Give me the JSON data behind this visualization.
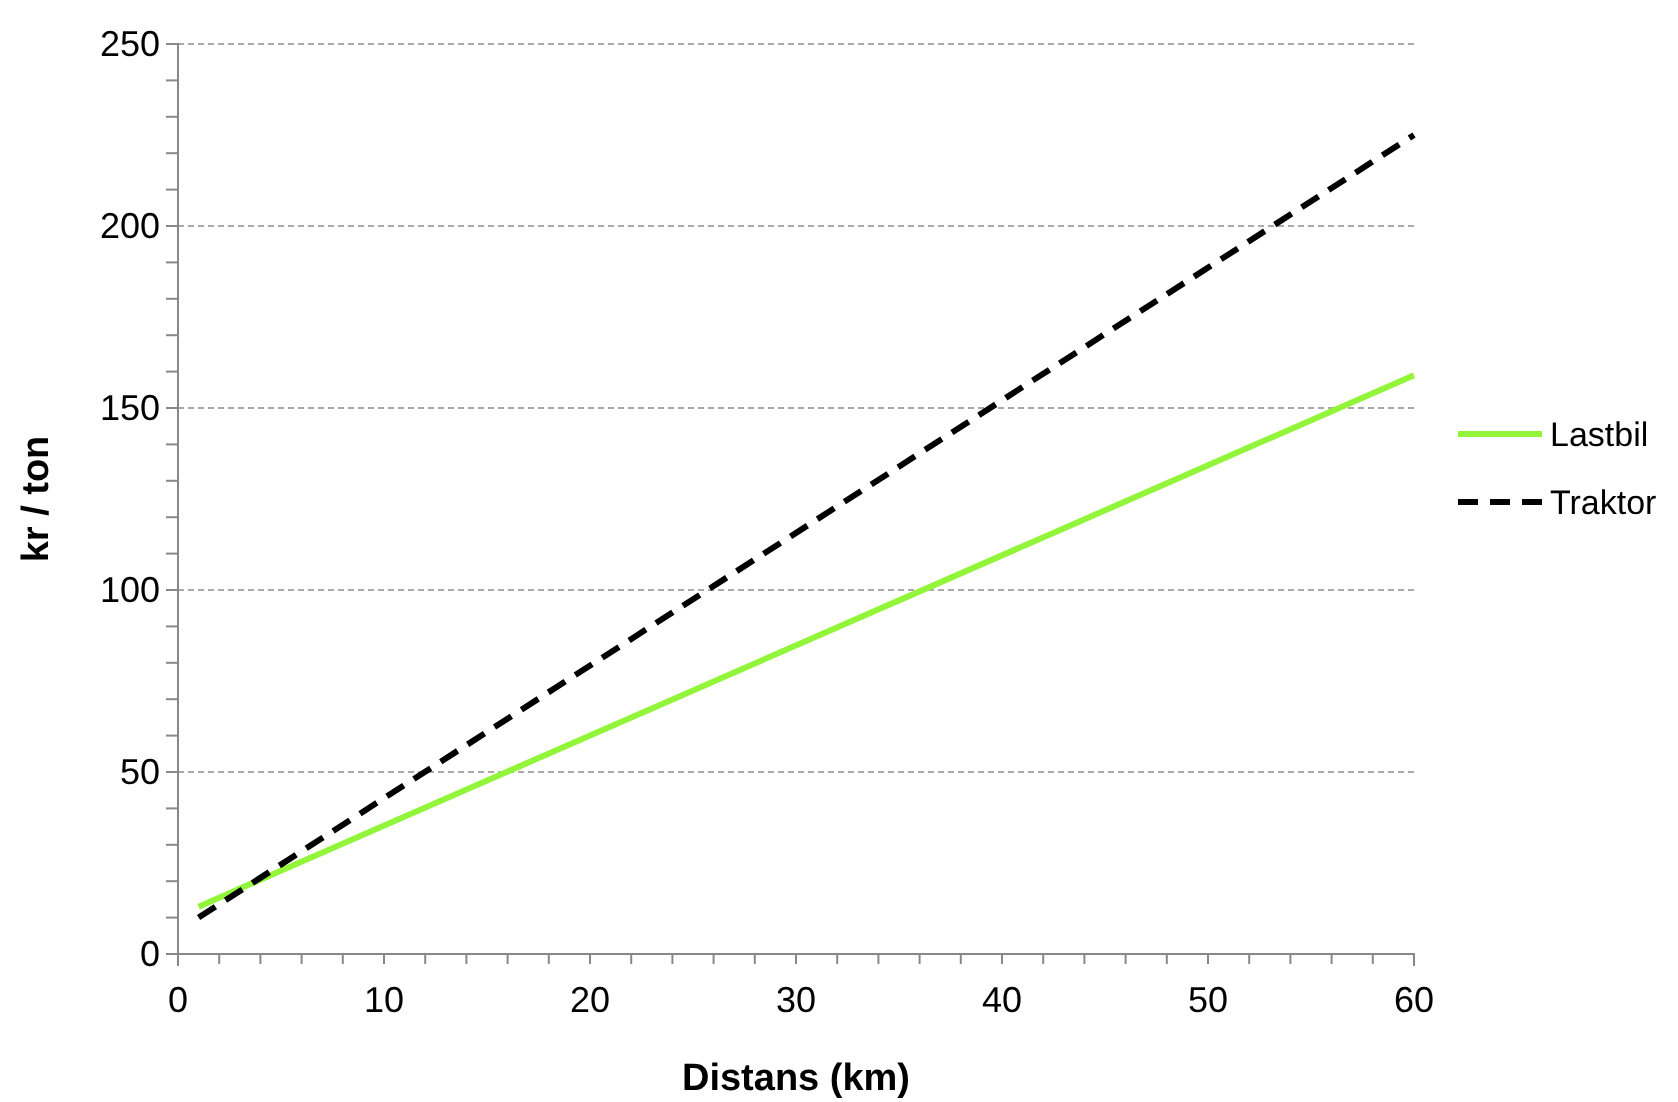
{
  "chart_data": {
    "type": "line",
    "xlabel": "Distans (km)",
    "ylabel": "kr / ton",
    "xlim": [
      0,
      60
    ],
    "ylim": [
      0,
      250
    ],
    "xticks": [
      0,
      {
        "value": 2,
        "label": null
      },
      {
        "value": 4,
        "label": null
      },
      {
        "value": 6,
        "label": null
      },
      {
        "value": 8,
        "label": null
      },
      10,
      {
        "value": 12,
        "label": null
      },
      {
        "value": 14,
        "label": null
      },
      {
        "value": 16,
        "label": null
      },
      {
        "value": 18,
        "label": null
      },
      20,
      {
        "value": 22,
        "label": null
      },
      {
        "value": 24,
        "label": null
      },
      {
        "value": 26,
        "label": null
      },
      {
        "value": 28,
        "label": null
      },
      30,
      {
        "value": 32,
        "label": null
      },
      {
        "value": 34,
        "label": null
      },
      {
        "value": 36,
        "label": null
      },
      {
        "value": 38,
        "label": null
      },
      40,
      {
        "value": 42,
        "label": null
      },
      {
        "value": 44,
        "label": null
      },
      {
        "value": 46,
        "label": null
      },
      {
        "value": 48,
        "label": null
      },
      50,
      {
        "value": 52,
        "label": null
      },
      {
        "value": 54,
        "label": null
      },
      {
        "value": 56,
        "label": null
      },
      {
        "value": 58,
        "label": null
      },
      60
    ],
    "yticks": [
      0,
      {
        "value": 10,
        "label": null
      },
      {
        "value": 20,
        "label": null
      },
      {
        "value": 30,
        "label": null
      },
      {
        "value": 40,
        "label": null
      },
      50,
      {
        "value": 60,
        "label": null
      },
      {
        "value": 70,
        "label": null
      },
      {
        "value": 80,
        "label": null
      },
      {
        "value": 90,
        "label": null
      },
      100,
      {
        "value": 110,
        "label": null
      },
      {
        "value": 120,
        "label": null
      },
      {
        "value": 130,
        "label": null
      },
      {
        "value": 140,
        "label": null
      },
      150,
      {
        "value": 160,
        "label": null
      },
      {
        "value": 170,
        "label": null
      },
      {
        "value": 180,
        "label": null
      },
      {
        "value": 190,
        "label": null
      },
      200,
      {
        "value": 210,
        "label": null
      },
      {
        "value": 220,
        "label": null
      },
      {
        "value": 230,
        "label": null
      },
      {
        "value": 240,
        "label": null
      },
      250
    ],
    "x": [
      1,
      60
    ],
    "grid": "y",
    "legend": "right",
    "marker": "none",
    "series": [
      {
        "name": "Lastbil",
        "color": "#92f53a",
        "line_style": "solid",
        "values": [
          13,
          159
        ]
      },
      {
        "name": "Traktor",
        "color": "#000000",
        "line_style": "dashed",
        "values": [
          10,
          225
        ]
      }
    ]
  }
}
